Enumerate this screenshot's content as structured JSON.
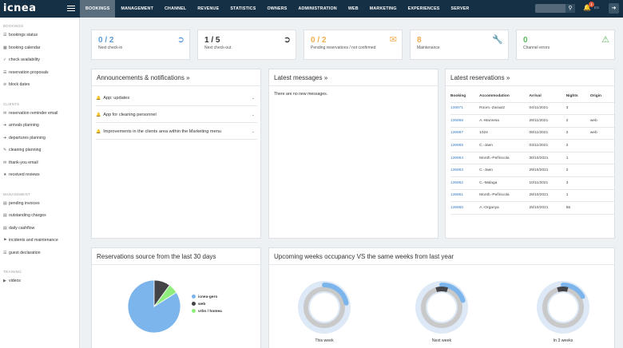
{
  "app": {
    "logo": "icnea",
    "nav": [
      "BOOKINGS",
      "MANAGEMENT",
      "CHANNEL",
      "REVENUE",
      "STATISTICS",
      "OWNERS",
      "ADMINISTRATION",
      "WEB",
      "MARKETING",
      "EXPERIENCES",
      "SERVER"
    ],
    "active_tab": "BOOKINGS",
    "notification_count": "1",
    "language": "ES"
  },
  "sidebar": {
    "sections": [
      {
        "title": "BOOKINGS",
        "items": [
          {
            "label": "bookings status",
            "icon": "list-icon"
          },
          {
            "label": "booking calendar",
            "icon": "calendar-icon"
          },
          {
            "label": "check availability",
            "icon": "check-icon"
          },
          {
            "label": "reservation proposals",
            "icon": "proposal-icon"
          },
          {
            "label": "block dates",
            "icon": "block-icon"
          }
        ]
      },
      {
        "title": "CLIENTS",
        "items": [
          {
            "label": "reservation reminder email",
            "icon": "envelope-icon"
          },
          {
            "label": "arrivals planning",
            "icon": "arrival-icon"
          },
          {
            "label": "departures planning",
            "icon": "departure-icon"
          },
          {
            "label": "cleaning planning",
            "icon": "cleaning-icon"
          },
          {
            "label": "thank-you email",
            "icon": "envelope-icon"
          },
          {
            "label": "received reviews",
            "icon": "comments-icon"
          }
        ]
      },
      {
        "title": "MANAGEMENT",
        "items": [
          {
            "label": "pending invoices",
            "icon": "invoice-icon"
          },
          {
            "label": "outstanding charges",
            "icon": "charges-icon"
          },
          {
            "label": "daily cashflow",
            "icon": "cashflow-icon"
          },
          {
            "label": "incidents and maintenance",
            "icon": "flag-icon"
          },
          {
            "label": "guest declaration",
            "icon": "declaration-icon"
          }
        ]
      },
      {
        "title": "TRAINING",
        "items": [
          {
            "label": "videos",
            "icon": "video-icon"
          }
        ]
      }
    ]
  },
  "stats": [
    {
      "value": "0 / 2",
      "label": "Next check-in",
      "icon": "sign-in-icon",
      "color": "#5b9bd5"
    },
    {
      "value": "1 / 5",
      "label": "Next check-out",
      "icon": "sign-out-icon",
      "color": "#333333"
    },
    {
      "value": "0 / 2",
      "label": "Pending reservations / not confirmed",
      "icon": "envelope-icon",
      "color": "#f0ad4e"
    },
    {
      "value": "8",
      "label": "Maintenance",
      "icon": "wrench-icon",
      "color": "#f0ad4e"
    },
    {
      "value": "0",
      "label": "Channel errors",
      "icon": "warning-icon",
      "color": "#5cb85c"
    }
  ],
  "announcements": {
    "title": "Announcements & notifications »",
    "items": [
      "App: updates",
      "App for cleaning personnel",
      "Improvements in the clients area within the Marketing menu"
    ]
  },
  "messages": {
    "title": "Latest messages »",
    "empty": "There are no new messages."
  },
  "reservations": {
    "title": "Latest reservations »",
    "headers": [
      "Booking",
      "Accommodation",
      "Arrival",
      "Nights",
      "Origin"
    ],
    "rows": [
      [
        "136971",
        "Room.-Zarautz",
        "04/11/2021",
        "3",
        ""
      ],
      [
        "136968",
        "A.-Manresa",
        "29/11/2021",
        "2",
        "web"
      ],
      [
        "136967",
        "1024",
        "08/11/2021",
        "2",
        "web"
      ],
      [
        "136965",
        "C.-Jaen",
        "03/11/2021",
        "2",
        ""
      ],
      [
        "136964",
        "Month.-Peñíscola",
        "30/10/2021",
        "1",
        ""
      ],
      [
        "136963",
        "C.-Jaen",
        "29/10/2021",
        "2",
        ""
      ],
      [
        "136962",
        "C.-Malaga",
        "10/11/2021",
        "3",
        ""
      ],
      [
        "136961",
        "Month.-Peñíscola",
        "28/10/2021",
        "1",
        ""
      ],
      [
        "136960",
        "A.-Organya",
        "25/10/2021",
        "55",
        ""
      ]
    ]
  },
  "source_panel": {
    "title": "Reservations source from the last 30 days"
  },
  "occupancy_panel": {
    "title": "Upcoming weeks occupancy VS the same weeks from last year",
    "weeks": [
      {
        "label": "This week",
        "this_year": 0.22,
        "last_year": 0.0
      },
      {
        "label": "Next week",
        "this_year": 0.2,
        "last_year": 0.05
      },
      {
        "label": "In 3 weeks",
        "this_year": 0.17,
        "last_year": 0.04
      }
    ]
  },
  "chart_data": {
    "type": "pie",
    "title": "Reservations source from the last 30 days",
    "categories": [
      "icnea-gero",
      "web",
      "vrbo / homea"
    ],
    "values": [
      84,
      10,
      6
    ],
    "colors": [
      "#7cb5ec",
      "#434348",
      "#90ed7d"
    ],
    "legend": "right"
  }
}
